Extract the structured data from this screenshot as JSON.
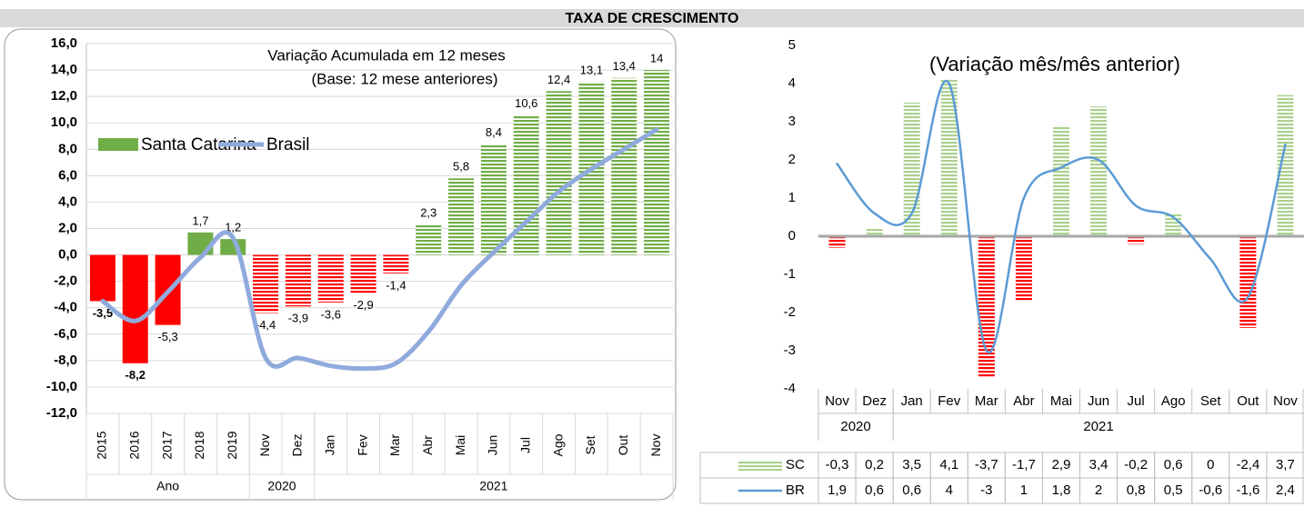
{
  "header": {
    "title": "TAXA DE CRESCIMENTO"
  },
  "chart_data": [
    {
      "type": "bar",
      "title": "Variação Acumulada em 12 meses",
      "subtitle": "(Base: 12 mese anteriores)",
      "groups": [
        {
          "label": "Ano",
          "categories": [
            "2015",
            "2016",
            "2017",
            "2018",
            "2019"
          ]
        },
        {
          "label": "2020",
          "categories": [
            "Nov",
            "Dez"
          ]
        },
        {
          "label": "2021",
          "categories": [
            "Jan",
            "Fev",
            "Mar",
            "Abr",
            "Mai",
            "Jun",
            "Jul",
            "Ago",
            "Set",
            "Out",
            "Nov"
          ]
        }
      ],
      "series": [
        {
          "name": "Santa Catarina",
          "type": "bar",
          "color": "#70ad47",
          "negative_color": "#ff0000",
          "pattern": [
            "solid",
            "solid",
            "solid",
            "solid",
            "solid",
            "hatched",
            "hatched",
            "hatched",
            "hatched",
            "hatched",
            "hatched",
            "hatched",
            "hatched",
            "hatched",
            "hatched",
            "hatched",
            "hatched",
            "hatched"
          ],
          "values": [
            -3.5,
            -8.2,
            -5.3,
            1.7,
            1.2,
            -4.4,
            -3.9,
            -3.6,
            -2.9,
            -1.4,
            2.3,
            5.8,
            8.4,
            10.6,
            12.4,
            13.1,
            13.4,
            14
          ],
          "value_labels": [
            "-3,5",
            "-8,2",
            "-5,3",
            "1,7",
            "1,2",
            "-4,4",
            "-3,9",
            "-3,6",
            "-2,9",
            "-1,4",
            "2,3",
            "5,8",
            "8,4",
            "10,6",
            "12,4",
            "13,1",
            "13,4",
            "14"
          ]
        },
        {
          "name": "Brasil",
          "type": "line",
          "color": "#8faadc",
          "values": [
            -3.5,
            -5.0,
            -2.8,
            -0.2,
            1.3,
            -7.8,
            -7.8,
            -8.4,
            -8.6,
            -8.2,
            -5.8,
            -2.3,
            0.2,
            2.5,
            4.8,
            6.5,
            8.0,
            9.5
          ]
        }
      ],
      "ylim": [
        -12,
        16
      ],
      "yticks": [
        {
          "value": -12,
          "label": "-12,0"
        },
        {
          "value": -10,
          "label": "-10,0"
        },
        {
          "value": -8,
          "label": "-8,0"
        },
        {
          "value": -6,
          "label": "-6,0"
        },
        {
          "value": -4,
          "label": "-4,0"
        },
        {
          "value": -2,
          "label": "-2,0"
        },
        {
          "value": 0,
          "label": "0,0"
        },
        {
          "value": 2,
          "label": "2,0"
        },
        {
          "value": 4,
          "label": "4,0"
        },
        {
          "value": 6,
          "label": "6,0"
        },
        {
          "value": 8,
          "label": "8,0"
        },
        {
          "value": 10,
          "label": "10,0"
        },
        {
          "value": 12,
          "label": "12,0"
        },
        {
          "value": 14,
          "label": "14,0"
        },
        {
          "value": 16,
          "label": "16,0"
        }
      ],
      "grid": true
    },
    {
      "type": "bar",
      "title": "(Variação mês/mês anterior)",
      "groups": [
        {
          "label": "2020",
          "categories": [
            "Nov",
            "Dez"
          ]
        },
        {
          "label": "2021",
          "categories": [
            "Jan",
            "Fev",
            "Mar",
            "Abr",
            "Mai",
            "Jun",
            "Jul",
            "Ago",
            "Set",
            "Out",
            "Nov"
          ]
        }
      ],
      "series": [
        {
          "name": "SC",
          "type": "bar",
          "color": "#a9d18e",
          "negative_color": "#ff0000",
          "values": [
            -0.3,
            0.2,
            3.5,
            4.1,
            -3.7,
            -1.7,
            2.9,
            3.4,
            -0.2,
            0.6,
            0,
            -2.4,
            3.7
          ],
          "value_labels": [
            "-0,3",
            "0,2",
            "3,5",
            "4,1",
            "-3,7",
            "-1,7",
            "2,9",
            "3,4",
            "-0,2",
            "0,6",
            "0",
            "-2,4",
            "3,7"
          ]
        },
        {
          "name": "BR",
          "type": "line",
          "color": "#5b9bd5",
          "values": [
            1.9,
            0.6,
            0.6,
            4,
            -3,
            1,
            1.8,
            2,
            0.8,
            0.5,
            -0.6,
            -1.6,
            2.4
          ],
          "value_labels": [
            "1,9",
            "0,6",
            "0,6",
            "4",
            "-3",
            "1",
            "1,8",
            "2",
            "0,8",
            "0,5",
            "-0,6",
            "-1,6",
            "2,4"
          ]
        }
      ],
      "ylim": [
        -4,
        5
      ],
      "yticks": [
        -4,
        -3,
        -2,
        -1,
        0,
        1,
        2,
        3,
        4,
        5
      ],
      "grid": false
    }
  ]
}
